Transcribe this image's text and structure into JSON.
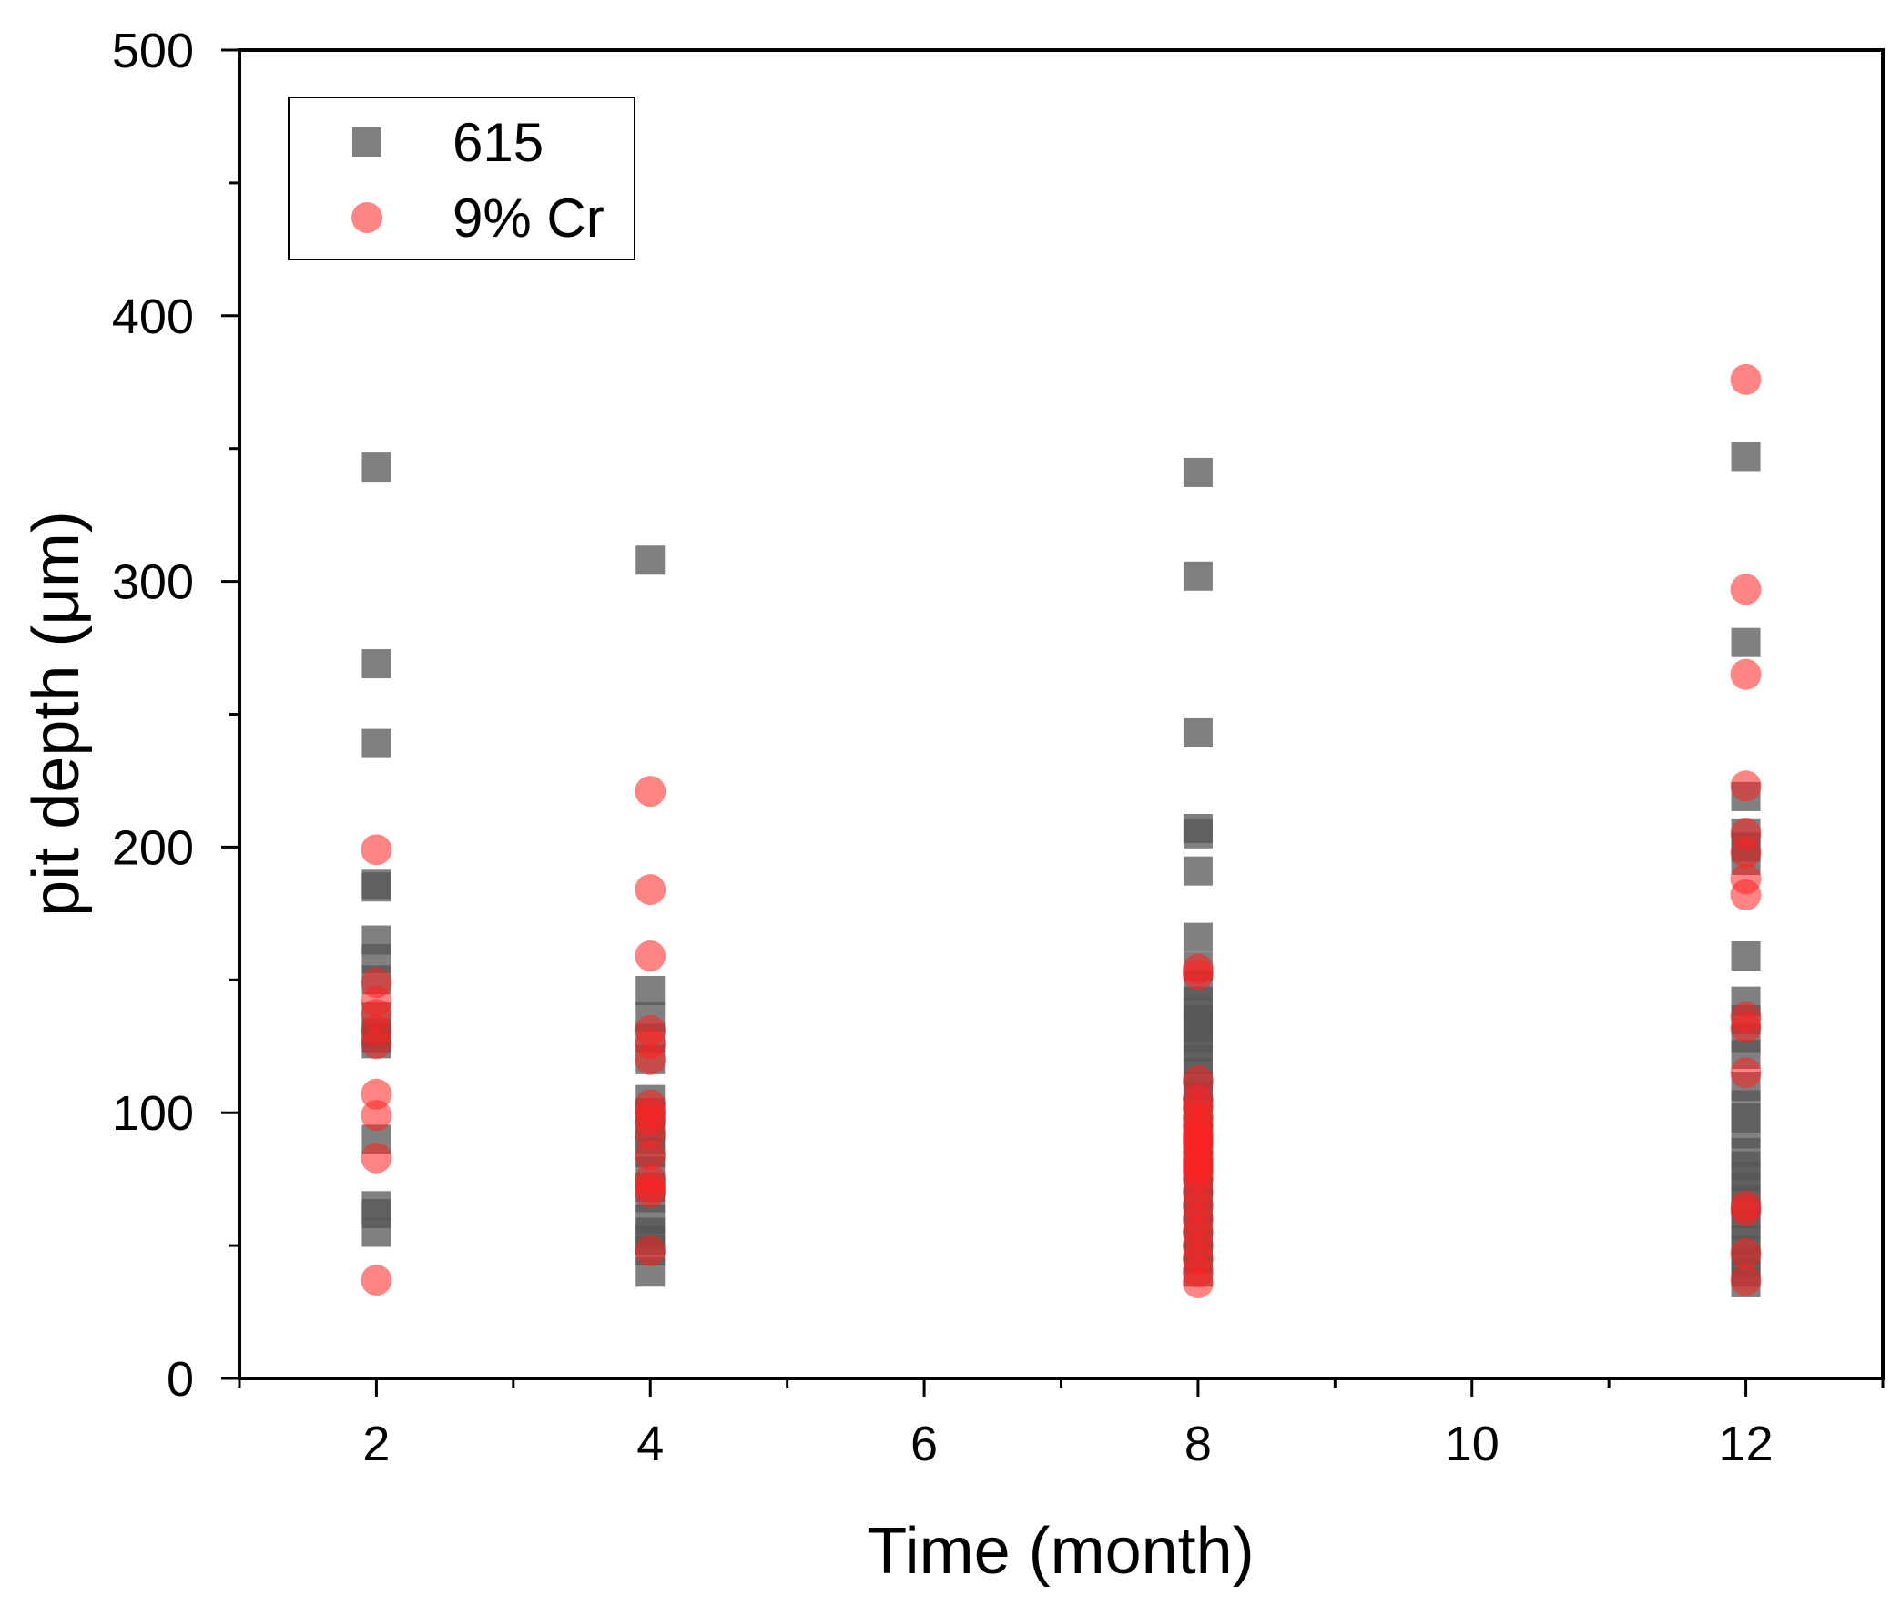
{
  "chart_data": {
    "type": "scatter",
    "title": "",
    "xlabel": "Time (month)",
    "ylabel": "pit depth (μm)",
    "xlim": [
      1,
      13
    ],
    "ylim": [
      0,
      500
    ],
    "x_ticks": [
      2,
      4,
      6,
      8,
      10,
      12
    ],
    "x_minor_ticks": [
      1,
      3,
      5,
      7,
      9,
      11,
      13
    ],
    "y_ticks": [
      0,
      100,
      200,
      300,
      400,
      500
    ],
    "y_minor_ticks": [
      50,
      150,
      250,
      350,
      450
    ],
    "grid": false,
    "legend_position": "top-left",
    "series": [
      {
        "name": "615",
        "marker": "square",
        "color": "#555555",
        "opacity": 0.75,
        "points": [
          [
            2,
            343
          ],
          [
            2,
            269
          ],
          [
            2,
            239
          ],
          [
            2,
            186
          ],
          [
            2,
            185
          ],
          [
            2,
            165
          ],
          [
            2,
            158
          ],
          [
            2,
            150
          ],
          [
            2,
            136
          ],
          [
            2,
            130
          ],
          [
            2,
            128
          ],
          [
            2,
            126
          ],
          [
            2,
            90
          ],
          [
            2,
            65
          ],
          [
            2,
            62
          ],
          [
            2,
            55
          ],
          [
            4,
            308
          ],
          [
            4,
            146
          ],
          [
            4,
            136
          ],
          [
            4,
            128
          ],
          [
            4,
            120
          ],
          [
            4,
            105
          ],
          [
            4,
            100
          ],
          [
            4,
            95
          ],
          [
            4,
            90
          ],
          [
            4,
            85
          ],
          [
            4,
            78
          ],
          [
            4,
            72
          ],
          [
            4,
            68
          ],
          [
            4,
            60
          ],
          [
            4,
            55
          ],
          [
            4,
            52
          ],
          [
            4,
            48
          ],
          [
            4,
            40
          ],
          [
            8,
            341
          ],
          [
            8,
            302
          ],
          [
            8,
            243
          ],
          [
            8,
            207
          ],
          [
            8,
            205
          ],
          [
            8,
            191
          ],
          [
            8,
            166
          ],
          [
            8,
            155
          ],
          [
            8,
            148
          ],
          [
            8,
            142
          ],
          [
            8,
            138
          ],
          [
            8,
            135
          ],
          [
            8,
            132
          ],
          [
            8,
            128
          ],
          [
            8,
            125
          ],
          [
            8,
            120
          ],
          [
            8,
            115
          ],
          [
            8,
            110
          ],
          [
            8,
            106
          ],
          [
            8,
            100
          ],
          [
            8,
            95
          ],
          [
            8,
            90
          ],
          [
            8,
            85
          ],
          [
            8,
            80
          ],
          [
            8,
            75
          ],
          [
            8,
            70
          ],
          [
            8,
            65
          ],
          [
            8,
            60
          ],
          [
            8,
            55
          ],
          [
            8,
            50
          ],
          [
            8,
            45
          ],
          [
            8,
            40
          ],
          [
            12,
            347
          ],
          [
            12,
            277
          ],
          [
            12,
            219
          ],
          [
            12,
            205
          ],
          [
            12,
            200
          ],
          [
            12,
            195
          ],
          [
            12,
            159
          ],
          [
            12,
            142
          ],
          [
            12,
            135
          ],
          [
            12,
            128
          ],
          [
            12,
            122
          ],
          [
            12,
            110
          ],
          [
            12,
            103
          ],
          [
            12,
            98
          ],
          [
            12,
            92
          ],
          [
            12,
            85
          ],
          [
            12,
            80
          ],
          [
            12,
            76
          ],
          [
            12,
            72
          ],
          [
            12,
            67
          ],
          [
            12,
            62
          ],
          [
            12,
            58
          ],
          [
            12,
            52
          ],
          [
            12,
            48
          ],
          [
            12,
            44
          ],
          [
            12,
            40
          ],
          [
            12,
            36
          ]
        ]
      },
      {
        "name": "9% Cr",
        "marker": "circle",
        "color": "#ff2020",
        "opacity": 0.55,
        "points": [
          [
            2,
            199
          ],
          [
            2,
            149
          ],
          [
            2,
            142
          ],
          [
            2,
            137
          ],
          [
            2,
            131
          ],
          [
            2,
            126
          ],
          [
            2,
            107
          ],
          [
            2,
            99
          ],
          [
            2,
            83
          ],
          [
            2,
            37
          ],
          [
            4,
            221
          ],
          [
            4,
            184
          ],
          [
            4,
            159
          ],
          [
            4,
            131
          ],
          [
            4,
            126
          ],
          [
            4,
            120
          ],
          [
            4,
            103
          ],
          [
            4,
            100
          ],
          [
            4,
            97
          ],
          [
            4,
            92
          ],
          [
            4,
            84
          ],
          [
            4,
            75
          ],
          [
            4,
            72
          ],
          [
            4,
            70
          ],
          [
            4,
            48
          ],
          [
            8,
            154
          ],
          [
            8,
            152
          ],
          [
            8,
            112
          ],
          [
            8,
            105
          ],
          [
            8,
            102
          ],
          [
            8,
            98
          ],
          [
            8,
            95
          ],
          [
            8,
            92
          ],
          [
            8,
            90
          ],
          [
            8,
            88
          ],
          [
            8,
            85
          ],
          [
            8,
            82
          ],
          [
            8,
            80
          ],
          [
            8,
            78
          ],
          [
            8,
            75
          ],
          [
            8,
            70
          ],
          [
            8,
            65
          ],
          [
            8,
            60
          ],
          [
            8,
            55
          ],
          [
            8,
            50
          ],
          [
            8,
            45
          ],
          [
            8,
            40
          ],
          [
            8,
            36
          ],
          [
            12,
            376
          ],
          [
            12,
            297
          ],
          [
            12,
            265
          ],
          [
            12,
            223
          ],
          [
            12,
            205
          ],
          [
            12,
            198
          ],
          [
            12,
            188
          ],
          [
            12,
            182
          ],
          [
            12,
            136
          ],
          [
            12,
            132
          ],
          [
            12,
            115
          ],
          [
            12,
            65
          ],
          [
            12,
            63
          ],
          [
            12,
            47
          ],
          [
            12,
            37
          ]
        ]
      }
    ]
  }
}
